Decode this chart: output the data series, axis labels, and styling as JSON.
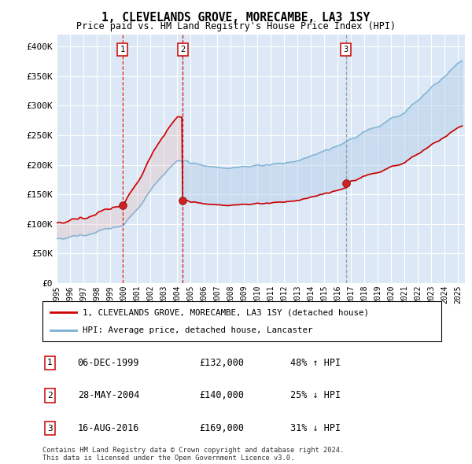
{
  "title": "1, CLEVELANDS GROVE, MORECAMBE, LA3 1SY",
  "subtitle": "Price paid vs. HM Land Registry's House Price Index (HPI)",
  "background_color": "#ffffff",
  "plot_bg_color": "#dce8f5",
  "grid_color": "#ffffff",
  "sale_color": "#cc0000",
  "hpi_color": "#7ab0d4",
  "vline_colors": [
    "#cc0000",
    "#cc0000",
    "#8899aa"
  ],
  "vline_styles": [
    "dashed",
    "dashed",
    "dashed"
  ],
  "ylim": [
    0,
    420000
  ],
  "yticks": [
    0,
    50000,
    100000,
    150000,
    200000,
    250000,
    300000,
    350000,
    400000
  ],
  "ytick_labels": [
    "£0",
    "£50K",
    "£100K",
    "£150K",
    "£200K",
    "£250K",
    "£300K",
    "£350K",
    "£400K"
  ],
  "xlim_start": 1995.0,
  "xlim_end": 2025.5,
  "xticks": [
    1995,
    1996,
    1997,
    1998,
    1999,
    2000,
    2001,
    2002,
    2003,
    2004,
    2005,
    2006,
    2007,
    2008,
    2009,
    2010,
    2011,
    2012,
    2013,
    2014,
    2015,
    2016,
    2017,
    2018,
    2019,
    2020,
    2021,
    2022,
    2023,
    2024,
    2025
  ],
  "sale_dates": [
    1999.92,
    2004.41,
    2016.62
  ],
  "sale_prices": [
    132000,
    140000,
    169000
  ],
  "legend_entries": [
    "1, CLEVELANDS GROVE, MORECAMBE, LA3 1SY (detached house)",
    "HPI: Average price, detached house, Lancaster"
  ],
  "table_data": [
    {
      "num": "1",
      "date": "06-DEC-1999",
      "price": "£132,000",
      "pct": "48% ↑ HPI"
    },
    {
      "num": "2",
      "date": "28-MAY-2004",
      "price": "£140,000",
      "pct": "25% ↓ HPI"
    },
    {
      "num": "3",
      "date": "16-AUG-2016",
      "price": "£169,000",
      "pct": "31% ↓ HPI"
    }
  ],
  "footer": "Contains HM Land Registry data © Crown copyright and database right 2024.\nThis data is licensed under the Open Government Licence v3.0."
}
